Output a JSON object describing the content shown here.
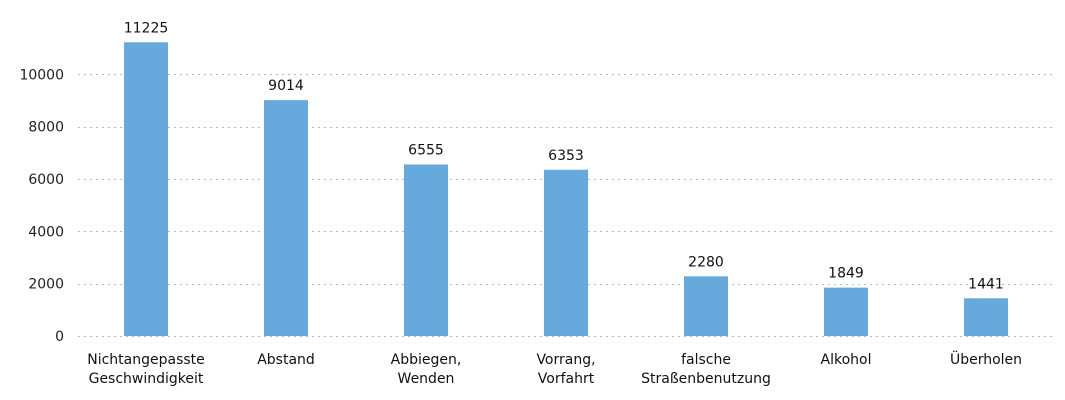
{
  "chart_data": {
    "type": "bar",
    "categories": [
      [
        "Nichtangepasste",
        "Geschwindigkeit"
      ],
      [
        "Abstand"
      ],
      [
        "Abbiegen,",
        "Wenden"
      ],
      [
        "Vorrang,",
        "Vorfahrt"
      ],
      [
        "falsche",
        "Straßenbenutzung"
      ],
      [
        "Alkohol"
      ],
      [
        "Überholen"
      ]
    ],
    "values": [
      11225,
      9014,
      6555,
      6353,
      2280,
      1849,
      1441
    ],
    "data_labels": [
      "11225",
      "9014",
      "6555",
      "6353",
      "2280",
      "1849",
      "1441"
    ],
    "y_ticks": [
      0,
      2000,
      4000,
      6000,
      8000,
      10000
    ],
    "y_tick_labels": [
      "0",
      "2000",
      "4000",
      "6000",
      "8000",
      "10000"
    ],
    "ylim": [
      0,
      12000
    ],
    "grid": true,
    "legend": "none",
    "bar_color": "#66aadd",
    "title": "",
    "xlabel": "",
    "ylabel": ""
  }
}
